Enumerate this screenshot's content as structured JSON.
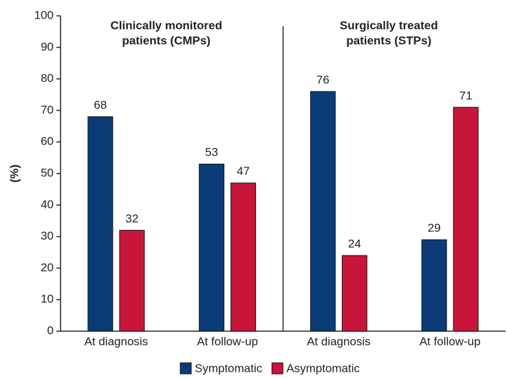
{
  "chart_data": {
    "type": "bar",
    "panel_titles": [
      [
        "Clinically monitored",
        "patients (CMPs)"
      ],
      [
        "Surgically treated",
        "patients (STPs)"
      ]
    ],
    "y_label": "(%)",
    "categories": [
      "At diagnosis",
      "At follow-up",
      "At diagnosis",
      "At follow-up"
    ],
    "series": [
      {
        "name": "Symptomatic",
        "color": "#0b3c78",
        "values": [
          68,
          53,
          76,
          29
        ]
      },
      {
        "name": "Asymptomatic",
        "color": "#c8163a",
        "values": [
          32,
          47,
          24,
          71
        ]
      }
    ],
    "ylim": [
      0,
      100
    ],
    "yticks": [
      0,
      10,
      20,
      30,
      40,
      50,
      60,
      70,
      80,
      90,
      100
    ],
    "grid": false,
    "legend": "bottom"
  }
}
